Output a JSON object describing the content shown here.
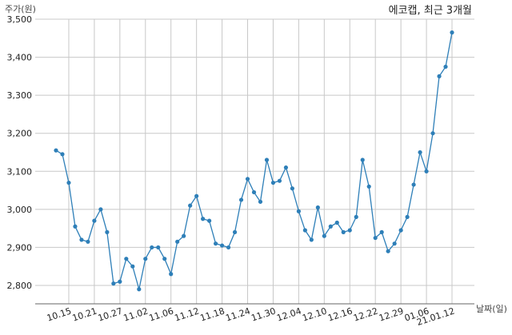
{
  "chart_data": {
    "type": "line",
    "title": "에코캡, 최근 3개월",
    "ylabel": "주가(원)",
    "xlabel": "날짜(일)",
    "ylim": [
      2750,
      3500
    ],
    "yticks": [
      2800,
      2900,
      3000,
      3100,
      3200,
      3300,
      3400,
      3500
    ],
    "ytick_labels": [
      "2,800",
      "2,900",
      "3,000",
      "3,100",
      "3,200",
      "3,300",
      "3,400",
      "3,500"
    ],
    "xtick_labels": [
      "10.15",
      "10.21",
      "10.27",
      "11.02",
      "11.06",
      "11.12",
      "11.18",
      "11.24",
      "11.30",
      "12.04",
      "12.10",
      "12.16",
      "12.22",
      "12.29",
      "01.06",
      "21.01.12"
    ],
    "xtick_index": [
      2,
      6,
      10,
      14,
      18,
      22,
      26,
      30,
      34,
      38,
      42,
      46,
      50,
      54,
      58,
      62
    ],
    "grid": true,
    "line_color": "#2e7fb8",
    "series": [
      {
        "name": "",
        "values": [
          3155,
          3145,
          3070,
          2955,
          2920,
          2915,
          2970,
          3000,
          2940,
          2805,
          2810,
          2870,
          2850,
          2790,
          2870,
          2900,
          2900,
          2870,
          2830,
          2915,
          2930,
          3010,
          3035,
          2975,
          2970,
          2910,
          2905,
          2900,
          2940,
          3025,
          3080,
          3045,
          3020,
          3130,
          3070,
          3075,
          3110,
          3055,
          2995,
          2945,
          2920,
          3005,
          2930,
          2955,
          2965,
          2940,
          2945,
          2980,
          3130,
          3060,
          2925,
          2940,
          2890,
          2910,
          2945,
          2980,
          3065,
          3150,
          3100,
          3200,
          3350,
          3375,
          3465
        ]
      }
    ]
  }
}
